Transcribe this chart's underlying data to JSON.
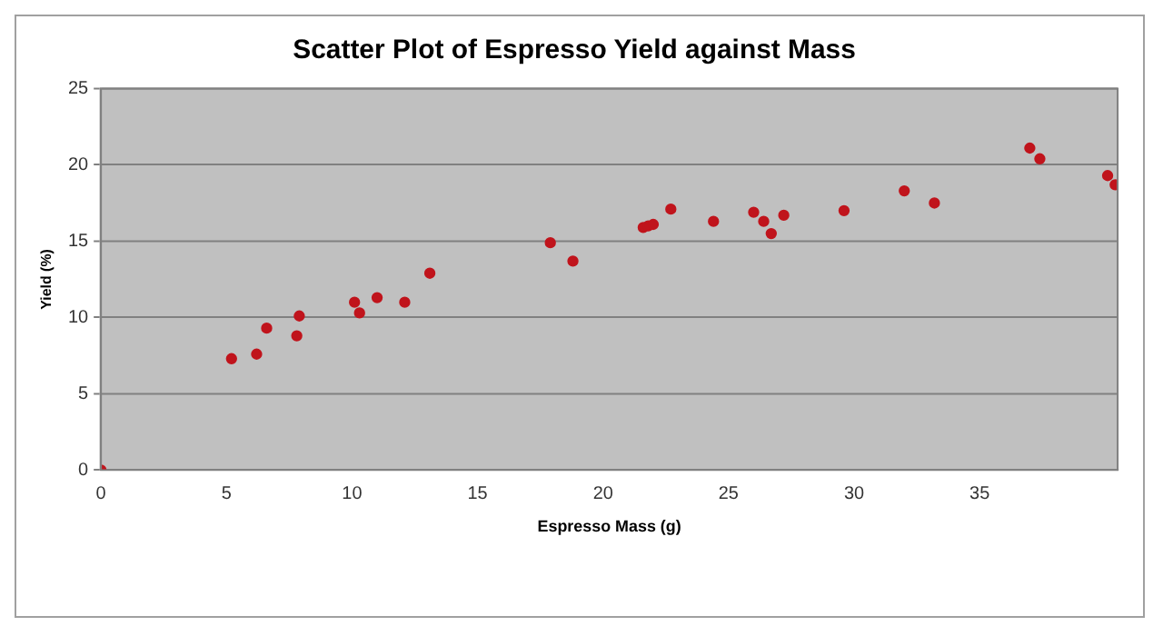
{
  "chart_data": {
    "type": "scatter",
    "title": "Scatter Plot of Espresso Yield against Mass",
    "xlabel": "Espresso Mass (g)",
    "ylabel": "Yield (%)",
    "x": [
      0,
      5.2,
      6.2,
      6.6,
      7.8,
      7.9,
      10.1,
      10.3,
      11.0,
      12.1,
      13.1,
      17.9,
      18.8,
      21.6,
      21.8,
      22.0,
      22.7,
      24.4,
      26.0,
      26.4,
      26.7,
      27.2,
      29.6,
      32.0,
      33.2,
      37.0,
      37.4,
      40.1,
      40.4
    ],
    "series": [
      {
        "color": "#c0141c",
        "values": [
          0,
          7.3,
          7.6,
          9.3,
          8.8,
          10.1,
          11.0,
          10.3,
          11.3,
          11.0,
          12.9,
          14.9,
          13.7,
          15.9,
          16.0,
          16.1,
          17.1,
          16.3,
          16.9,
          16.3,
          15.5,
          16.7,
          17.0,
          18.3,
          17.5,
          21.1,
          20.4,
          19.3,
          18.7
        ]
      }
    ],
    "xlim": [
      0,
      40.5
    ],
    "xticks": [
      0,
      5,
      10,
      15,
      20,
      25,
      30,
      35
    ],
    "ylim": [
      0,
      25
    ],
    "yticks": [
      0,
      5,
      10,
      15,
      20,
      25
    ],
    "grid": "y",
    "legend": false,
    "marker": "circle"
  }
}
